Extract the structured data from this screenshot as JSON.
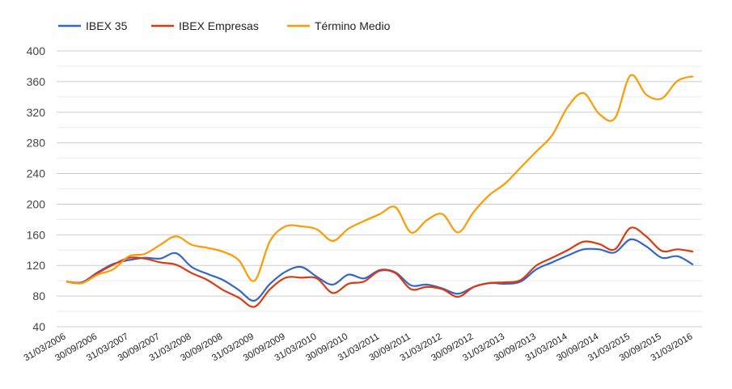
{
  "chart_data": {
    "type": "line",
    "title": "",
    "xlabel": "",
    "ylabel": "",
    "ylim": [
      40,
      400
    ],
    "yticks": [
      40,
      80,
      120,
      160,
      200,
      240,
      280,
      320,
      360,
      400
    ],
    "grid": true,
    "legend_position": "top-left",
    "x_tick_labels": [
      "31/03/2006",
      "30/09/2006",
      "31/03/2007",
      "30/09/2007",
      "31/03/2008",
      "30/09/2008",
      "31/03/2009",
      "30/09/2009",
      "31/03/2010",
      "30/09/2010",
      "31/03/2011",
      "30/09/2011",
      "31/03/2012",
      "30/09/2012",
      "31/03/2013",
      "30/09/2013",
      "31/03/2014",
      "30/09/2014",
      "31/03/2015",
      "30/09/2015",
      "31/03/2016"
    ],
    "x": [
      "31/03/2006",
      "30/06/2006",
      "30/09/2006",
      "31/12/2006",
      "31/03/2007",
      "30/06/2007",
      "30/09/2007",
      "31/12/2007",
      "31/03/2008",
      "30/06/2008",
      "30/09/2008",
      "31/12/2008",
      "31/03/2009",
      "30/06/2009",
      "30/09/2009",
      "31/12/2009",
      "31/03/2010",
      "30/06/2010",
      "30/09/2010",
      "31/12/2010",
      "31/03/2011",
      "30/06/2011",
      "30/09/2011",
      "31/12/2011",
      "31/03/2012",
      "30/06/2012",
      "30/09/2012",
      "31/12/2012",
      "31/03/2013",
      "30/06/2013",
      "30/09/2013",
      "31/12/2013",
      "31/03/2014",
      "30/06/2014",
      "30/09/2014",
      "31/12/2014",
      "31/03/2015",
      "30/06/2015",
      "30/09/2015",
      "31/12/2015",
      "31/03/2016"
    ],
    "series": [
      {
        "name": "IBEX 35",
        "color": "#3366cc",
        "values": [
          99,
          98,
          111,
          122,
          127,
          130,
          129,
          136,
          118,
          109,
          101,
          88,
          74,
          96,
          112,
          118,
          105,
          95,
          108,
          103,
          114,
          111,
          94,
          95,
          90,
          83,
          92,
          97,
          96,
          99,
          115,
          124,
          133,
          141,
          141,
          137,
          154,
          145,
          130,
          132,
          121
        ]
      },
      {
        "name": "IBEX Empresas",
        "color": "#dc3912",
        "values": [
          99,
          97,
          110,
          121,
          130,
          129,
          124,
          121,
          110,
          101,
          88,
          78,
          66,
          89,
          104,
          104,
          103,
          84,
          96,
          99,
          113,
          110,
          89,
          92,
          89,
          79,
          92,
          97,
          98,
          101,
          120,
          130,
          140,
          151,
          148,
          141,
          169,
          158,
          139,
          141,
          138
        ]
      },
      {
        "name": "Término Medio",
        "color": "#ff9900",
        "values": [
          99,
          97,
          108,
          115,
          132,
          135,
          147,
          158,
          147,
          143,
          138,
          127,
          100,
          152,
          171,
          171,
          167,
          152,
          168,
          178,
          187,
          196,
          163,
          179,
          187,
          163,
          190,
          212,
          227,
          248,
          269,
          290,
          327,
          345,
          318,
          312,
          368,
          343,
          338,
          361,
          367
        ]
      }
    ]
  }
}
